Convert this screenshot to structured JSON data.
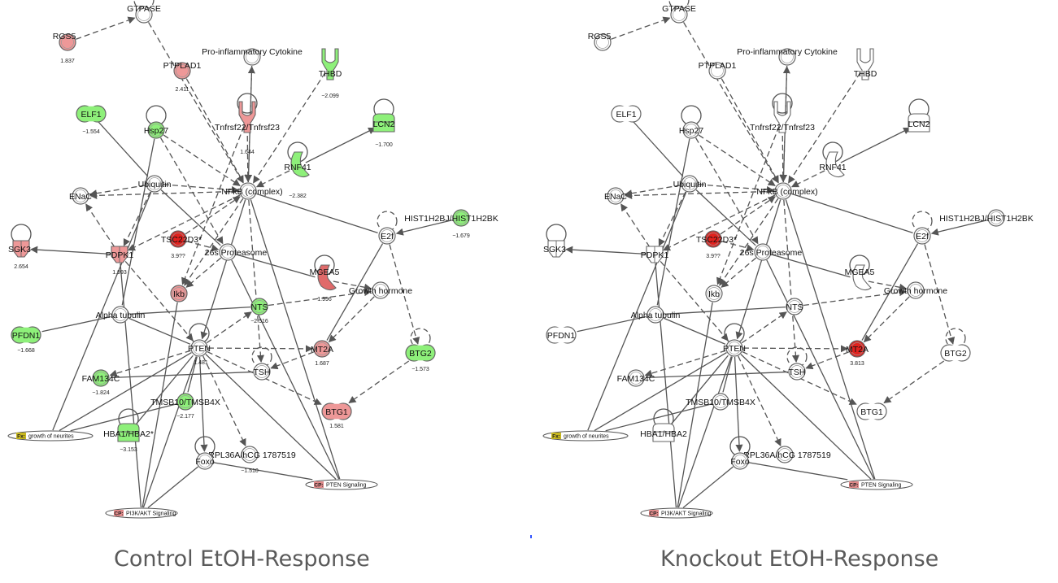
{
  "captions": {
    "left": "Control EtOH-Response",
    "right": "Knockout EtOH-Response"
  },
  "colors": {
    "up_strong": "#e0221e",
    "up_light": "#ee9898",
    "up_mid": "#e06a6a",
    "down": "#8ef07a",
    "down_light": "#b6f2a6",
    "neutral": "#ffffff",
    "fx_tag": "#c8b820",
    "cp_tag": "#e08a8a",
    "edge": "#555555"
  },
  "panels": [
    {
      "id": "control",
      "nodes": [
        {
          "id": "GTPASE",
          "label": "GTPASE",
          "shape": "circle",
          "fill": "neutral"
        },
        {
          "id": "RGS5",
          "label": "RGS5",
          "shape": "circle",
          "fill": "up_light",
          "value": "1.837"
        },
        {
          "id": "PTPLAD1",
          "label": "PTPLAD1",
          "shape": "circle",
          "fill": "up_light",
          "value": "2.411"
        },
        {
          "id": "ProInf",
          "label": "Pro-inflammatory Cytokine",
          "shape": "circle",
          "fill": "neutral"
        },
        {
          "id": "THBD",
          "label": "THBD",
          "shape": "receptor",
          "fill": "down",
          "value": "−2.099"
        },
        {
          "id": "ELF1",
          "label": "ELF1",
          "shape": "pill",
          "fill": "down",
          "value": "−1.554"
        },
        {
          "id": "Hsp27",
          "label": "Hsp27",
          "shape": "circle",
          "fill": "down"
        },
        {
          "id": "Tnfrsf",
          "label": "Tnfrsf22/Tnfrsf23",
          "shape": "receptor",
          "fill": "up_light",
          "value": "1.644"
        },
        {
          "id": "LCN2",
          "label": "LCN2",
          "shape": "transporter",
          "fill": "down",
          "value": "−1.700"
        },
        {
          "id": "RNF41",
          "label": "RNF41",
          "shape": "enzyme",
          "fill": "down",
          "value": "−2.382"
        },
        {
          "id": "Ubiquitin",
          "label": "Ubiquitin",
          "shape": "circle",
          "fill": "neutral"
        },
        {
          "id": "NFkB",
          "label": "NFkB (complex)",
          "shape": "circle",
          "fill": "neutral"
        },
        {
          "id": "ENaC",
          "label": "ENaC",
          "shape": "circle",
          "fill": "neutral"
        },
        {
          "id": "HIST",
          "label": "HIST1H2BJ/HIST1H2BK",
          "shape": "circle",
          "fill": "down",
          "value": "−1.679"
        },
        {
          "id": "E2f",
          "label": "E2f",
          "shape": "circle",
          "fill": "neutral"
        },
        {
          "id": "SGK3",
          "label": "SGK3",
          "shape": "kinase",
          "fill": "up_light",
          "value": "2.654"
        },
        {
          "id": "TSC22D3",
          "label": "TSC22D3*",
          "shape": "circle",
          "fill": "up_strong",
          "value": "3.9??"
        },
        {
          "id": "PDPK1",
          "label": "PDPK1",
          "shape": "kinase",
          "fill": "up_light",
          "value": "1.993"
        },
        {
          "id": "Prot26",
          "label": "26s Proteasome",
          "shape": "circle",
          "fill": "neutral"
        },
        {
          "id": "MGEA5",
          "label": "MGEA5",
          "shape": "enzyme",
          "fill": "up_mid",
          "value": "1.996"
        },
        {
          "id": "Ikb",
          "label": "Ikb",
          "shape": "circle",
          "fill": "up_light"
        },
        {
          "id": "GH",
          "label": "Growth hormone",
          "shape": "circle",
          "fill": "neutral"
        },
        {
          "id": "NTS",
          "label": "NTS",
          "shape": "circle",
          "fill": "down",
          "value": "−2.516"
        },
        {
          "id": "AlphaTub",
          "label": "Alpha tubulin",
          "shape": "circle",
          "fill": "neutral"
        },
        {
          "id": "PFDN1",
          "label": "PFDN1",
          "shape": "pill",
          "fill": "down",
          "value": "−1.668"
        },
        {
          "id": "PTEN",
          "label": "PTEN",
          "shape": "circle",
          "fill": "neutral",
          "value": "1.481"
        },
        {
          "id": "MT2A",
          "label": "MT2A",
          "shape": "circle",
          "fill": "up_light",
          "value": "1.687"
        },
        {
          "id": "BTG2",
          "label": "BTG2",
          "shape": "pill",
          "fill": "down",
          "value": "−1.573"
        },
        {
          "id": "FAM134C",
          "label": "FAM134C",
          "shape": "circle",
          "fill": "down",
          "value": "−1.824"
        },
        {
          "id": "TSH",
          "label": "TSH",
          "shape": "circle",
          "fill": "neutral"
        },
        {
          "id": "TMSB10",
          "label": "TMSB10/TMSB4X",
          "shape": "circle",
          "fill": "down",
          "value": "−2.177"
        },
        {
          "id": "BTG1",
          "label": "BTG1",
          "shape": "pill",
          "fill": "up_light",
          "value": "1.581"
        },
        {
          "id": "HBA1",
          "label": "HBA1/HBA2*",
          "shape": "transporter",
          "fill": "down",
          "value": "−3.153"
        },
        {
          "id": "RPL36A",
          "label": "RPL36A/hCG 1787519",
          "shape": "circle",
          "fill": "neutral",
          "value": "−1.510"
        },
        {
          "id": "Foxo",
          "label": "Foxo",
          "shape": "circle",
          "fill": "neutral"
        },
        {
          "id": "FxNeurites",
          "label": "growth of neurites",
          "shape": "fx",
          "tag": "Fx:"
        },
        {
          "id": "CPPTEN",
          "label": "PTEN Signaling",
          "shape": "cp",
          "tag": "CP:"
        },
        {
          "id": "CPPI3K",
          "label": "PI3K/AKT Signaling",
          "shape": "cp",
          "tag": "CP:"
        }
      ]
    },
    {
      "id": "knockout",
      "nodes": [
        {
          "id": "GTPASE",
          "label": "GTPASE",
          "shape": "circle",
          "fill": "neutral"
        },
        {
          "id": "RGS5",
          "label": "RGS5",
          "shape": "circle",
          "fill": "neutral"
        },
        {
          "id": "PTPLAD1",
          "label": "PTPLAD1",
          "shape": "circle",
          "fill": "neutral"
        },
        {
          "id": "ProInf",
          "label": "Pro-inflammatory Cytokine",
          "shape": "circle",
          "fill": "neutral"
        },
        {
          "id": "THBD",
          "label": "THBD",
          "shape": "receptor",
          "fill": "neutral"
        },
        {
          "id": "ELF1",
          "label": "ELF1",
          "shape": "pill",
          "fill": "neutral"
        },
        {
          "id": "Hsp27",
          "label": "Hsp27",
          "shape": "circle",
          "fill": "neutral"
        },
        {
          "id": "Tnfrsf",
          "label": "Tnfrsf22/Tnfrsf23",
          "shape": "receptor",
          "fill": "neutral"
        },
        {
          "id": "LCN2",
          "label": "LCN2",
          "shape": "transporter",
          "fill": "neutral"
        },
        {
          "id": "RNF41",
          "label": "RNF41",
          "shape": "enzyme",
          "fill": "neutral"
        },
        {
          "id": "Ubiquitin",
          "label": "Ubiquitin",
          "shape": "circle",
          "fill": "neutral"
        },
        {
          "id": "NFkB",
          "label": "NFkB (complex)",
          "shape": "circle",
          "fill": "neutral"
        },
        {
          "id": "ENaC",
          "label": "ENaC",
          "shape": "circle",
          "fill": "neutral"
        },
        {
          "id": "HIST",
          "label": "HIST1H2BJ/HIST1H2BK",
          "shape": "circle",
          "fill": "neutral"
        },
        {
          "id": "E2f",
          "label": "E2f",
          "shape": "circle",
          "fill": "neutral"
        },
        {
          "id": "SGK3",
          "label": "SGK3",
          "shape": "kinase",
          "fill": "neutral"
        },
        {
          "id": "TSC22D3",
          "label": "TSC22D3*",
          "shape": "circle",
          "fill": "up_strong",
          "value": "3.9??"
        },
        {
          "id": "PDPK1",
          "label": "PDPK1",
          "shape": "kinase",
          "fill": "neutral"
        },
        {
          "id": "Prot26",
          "label": "26s Proteasome",
          "shape": "circle",
          "fill": "neutral"
        },
        {
          "id": "MGEA5",
          "label": "MGEA5",
          "shape": "enzyme",
          "fill": "neutral"
        },
        {
          "id": "Ikb",
          "label": "Ikb",
          "shape": "circle",
          "fill": "neutral"
        },
        {
          "id": "GH",
          "label": "Growth hormone",
          "shape": "circle",
          "fill": "neutral"
        },
        {
          "id": "NTS",
          "label": "NTS",
          "shape": "circle",
          "fill": "neutral"
        },
        {
          "id": "AlphaTub",
          "label": "Alpha tubulin",
          "shape": "circle",
          "fill": "neutral"
        },
        {
          "id": "PFDN1",
          "label": "PFDN1",
          "shape": "pill",
          "fill": "neutral"
        },
        {
          "id": "PTEN",
          "label": "PTEN",
          "shape": "circle",
          "fill": "neutral"
        },
        {
          "id": "MT2A",
          "label": "MT2A",
          "shape": "circle",
          "fill": "up_strong",
          "value": "3.813"
        },
        {
          "id": "BTG2",
          "label": "BTG2",
          "shape": "pill",
          "fill": "neutral"
        },
        {
          "id": "FAM134C",
          "label": "FAM134C",
          "shape": "circle",
          "fill": "neutral"
        },
        {
          "id": "TSH",
          "label": "TSH",
          "shape": "circle",
          "fill": "neutral"
        },
        {
          "id": "TMSB10",
          "label": "TMSB10/TMSB4X",
          "shape": "circle",
          "fill": "neutral"
        },
        {
          "id": "BTG1",
          "label": "BTG1",
          "shape": "pill",
          "fill": "neutral"
        },
        {
          "id": "HBA1",
          "label": "HBA1/HBA2",
          "shape": "transporter",
          "fill": "neutral"
        },
        {
          "id": "RPL36A",
          "label": "RPL36A/hCG 1787519",
          "shape": "circle",
          "fill": "neutral"
        },
        {
          "id": "Foxo",
          "label": "Foxo",
          "shape": "circle",
          "fill": "neutral"
        },
        {
          "id": "FxNeurites",
          "label": "growth of neurites",
          "shape": "fx",
          "tag": "Fx:"
        },
        {
          "id": "CPPTEN",
          "label": "PTEN Signaling",
          "shape": "cp",
          "tag": "CP:"
        },
        {
          "id": "CPPI3K",
          "label": "PI3K/AKT Signaling",
          "shape": "cp",
          "tag": "CP:"
        }
      ]
    }
  ],
  "edges": [
    {
      "from": "RGS5",
      "to": "GTPASE",
      "dashed": true,
      "arrow": true
    },
    {
      "from": "GTPASE",
      "to": "NFkB",
      "dashed": true,
      "arrow": true
    },
    {
      "from": "PTPLAD1",
      "to": "NFkB",
      "dashed": true,
      "arrow": true
    },
    {
      "from": "NFkB",
      "to": "ProInf",
      "dashed": true,
      "arrow": true
    },
    {
      "from": "ProInf",
      "to": "NFkB",
      "dashed": true,
      "arrow": true
    },
    {
      "from": "THBD",
      "to": "NFkB",
      "dashed": true,
      "arrow": true
    },
    {
      "from": "ELF1",
      "to": "Ubiquitin",
      "dashed": false,
      "arrow": false
    },
    {
      "from": "Hsp27",
      "to": "NFkB",
      "dashed": true,
      "arrow": true
    },
    {
      "from": "Hsp27",
      "to": "Prot26",
      "dashed": true,
      "arrow": true
    },
    {
      "from": "Hsp27",
      "to": "AlphaTub",
      "dashed": false,
      "arrow": false
    },
    {
      "from": "Tnfrsf",
      "to": "NFkB",
      "dashed": true,
      "arrow": true
    },
    {
      "from": "Tnfrsf",
      "to": "Ikb",
      "dashed": true,
      "arrow": true
    },
    {
      "from": "RNF41",
      "to": "LCN2",
      "dashed": false,
      "arrow": true
    },
    {
      "from": "RNF41",
      "to": "NFkB",
      "dashed": true,
      "arrow": true
    },
    {
      "from": "Ubiquitin",
      "to": "ENaC",
      "dashed": true,
      "arrow": true
    },
    {
      "from": "Ubiquitin",
      "to": "NFkB",
      "dashed": true,
      "arrow": true
    },
    {
      "from": "Ubiquitin",
      "to": "PDPK1",
      "dashed": true,
      "arrow": true
    },
    {
      "from": "Ubiquitin",
      "to": "Prot26",
      "dashed": false,
      "arrow": false
    },
    {
      "from": "NFkB",
      "to": "ENaC",
      "dashed": true,
      "arrow": true
    },
    {
      "from": "NFkB",
      "to": "E2f",
      "dashed": false,
      "arrow": false
    },
    {
      "from": "NFkB",
      "to": "PTEN",
      "dashed": false,
      "arrow": true
    },
    {
      "from": "NFkB",
      "to": "Ikb",
      "dashed": true,
      "arrow": true
    },
    {
      "from": "NFkB",
      "to": "TSH",
      "dashed": true,
      "arrow": true
    },
    {
      "from": "NFkB",
      "to": "PDPK1",
      "dashed": true,
      "arrow": true
    },
    {
      "from": "TSC22D3",
      "to": "NFkB",
      "dashed": true,
      "arrow": true
    },
    {
      "from": "HIST",
      "to": "E2f",
      "dashed": false,
      "arrow": true
    },
    {
      "from": "E2f",
      "to": "BTG2",
      "dashed": true,
      "arrow": true
    },
    {
      "from": "E2f",
      "to": "MT2A",
      "dashed": false,
      "arrow": false
    },
    {
      "from": "PDPK1",
      "to": "SGK3",
      "dashed": false,
      "arrow": true
    },
    {
      "from": "PDPK1",
      "to": "ENaC",
      "dashed": true,
      "arrow": true
    },
    {
      "from": "PDPK1",
      "to": "PTEN",
      "dashed": true,
      "arrow": true
    },
    {
      "from": "Prot26",
      "to": "MGEA5",
      "dashed": false,
      "arrow": false
    },
    {
      "from": "Prot26",
      "to": "Ikb",
      "dashed": true,
      "arrow": true
    },
    {
      "from": "MGEA5",
      "to": "GH",
      "dashed": true,
      "arrow": true
    },
    {
      "from": "GH",
      "to": "MT2A",
      "dashed": true,
      "arrow": true
    },
    {
      "from": "NTS",
      "to": "GH",
      "dashed": true,
      "arrow": true
    },
    {
      "from": "NTS",
      "to": "AlphaTub",
      "dashed": false,
      "arrow": false
    },
    {
      "from": "PTEN",
      "to": "NTS",
      "dashed": true,
      "arrow": true
    },
    {
      "from": "PTEN",
      "to": "MT2A",
      "dashed": true,
      "arrow": true
    },
    {
      "from": "PTEN",
      "to": "FAM134C",
      "dashed": true,
      "arrow": true
    },
    {
      "from": "PTEN",
      "to": "TMSB10",
      "dashed": false,
      "arrow": false
    },
    {
      "from": "PTEN",
      "to": "BTG1",
      "dashed": true,
      "arrow": true
    },
    {
      "from": "PTEN",
      "to": "Foxo",
      "dashed": false,
      "arrow": true
    },
    {
      "from": "PTEN",
      "to": "RPL36A",
      "dashed": true,
      "arrow": true
    },
    {
      "from": "PTEN",
      "to": "CPPTEN",
      "dashed": false,
      "arrow": false
    },
    {
      "from": "PTEN",
      "to": "FxNeurites",
      "dashed": false,
      "arrow": false
    },
    {
      "from": "PFDN1",
      "to": "AlphaTub",
      "dashed": false,
      "arrow": false
    },
    {
      "from": "AlphaTub",
      "to": "PTEN",
      "dashed": false,
      "arrow": false
    },
    {
      "from": "MT2A",
      "to": "TSH",
      "dashed": true,
      "arrow": true
    },
    {
      "from": "TSH",
      "to": "FAM134C",
      "dashed": false,
      "arrow": false
    },
    {
      "from": "BTG2",
      "to": "BTG1",
      "dashed": true,
      "arrow": true
    },
    {
      "from": "TMSB10",
      "to": "FxNeurites",
      "dashed": false,
      "arrow": false
    },
    {
      "from": "HBA1",
      "to": "PTEN",
      "dashed": false,
      "arrow": false
    },
    {
      "from": "Foxo",
      "to": "CPPTEN",
      "dashed": false,
      "arrow": false
    },
    {
      "from": "Foxo",
      "to": "CPPI3K",
      "dashed": false,
      "arrow": false
    },
    {
      "from": "PTEN",
      "to": "CPPI3K",
      "dashed": false,
      "arrow": false
    },
    {
      "from": "Ikb",
      "to": "CPPI3K",
      "dashed": false,
      "arrow": false
    },
    {
      "from": "PDPK1",
      "to": "CPPI3K",
      "dashed": false,
      "arrow": false
    },
    {
      "from": "Ubiquitin",
      "to": "FxNeurites",
      "dashed": false,
      "arrow": false
    },
    {
      "from": "Prot26",
      "to": "CPPTEN",
      "dashed": false,
      "arrow": false
    },
    {
      "from": "NFkB",
      "to": "CPPTEN",
      "dashed": false,
      "arrow": false
    },
    {
      "from": "TSC22D3",
      "to": "Prot26",
      "dashed": true,
      "arrow": true
    }
  ]
}
